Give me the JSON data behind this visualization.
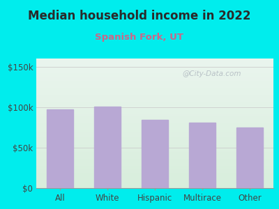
{
  "title": "Median household income in 2022",
  "subtitle": "Spanish Fork, UT",
  "categories": [
    "All",
    "White",
    "Hispanic",
    "Multirace",
    "Other"
  ],
  "values": [
    97000,
    101000,
    84000,
    81000,
    75000
  ],
  "bar_color": "#b8a8d4",
  "bar_edge_color": "#b8a8d4",
  "background_outer": "#00eded",
  "background_inner_top": "#eaf5ee",
  "background_inner_bottom": "#d8eedc",
  "title_color": "#2a2a2a",
  "subtitle_color": "#cc6688",
  "tick_label_color": "#444444",
  "ytick_labels": [
    "$0",
    "$50k",
    "$100k",
    "$150k"
  ],
  "ytick_values": [
    0,
    50000,
    100000,
    150000
  ],
  "ylim": [
    0,
    160000
  ],
  "watermark": "@City-Data.com",
  "title_fontsize": 12,
  "subtitle_fontsize": 9.5,
  "tick_fontsize": 8.5
}
